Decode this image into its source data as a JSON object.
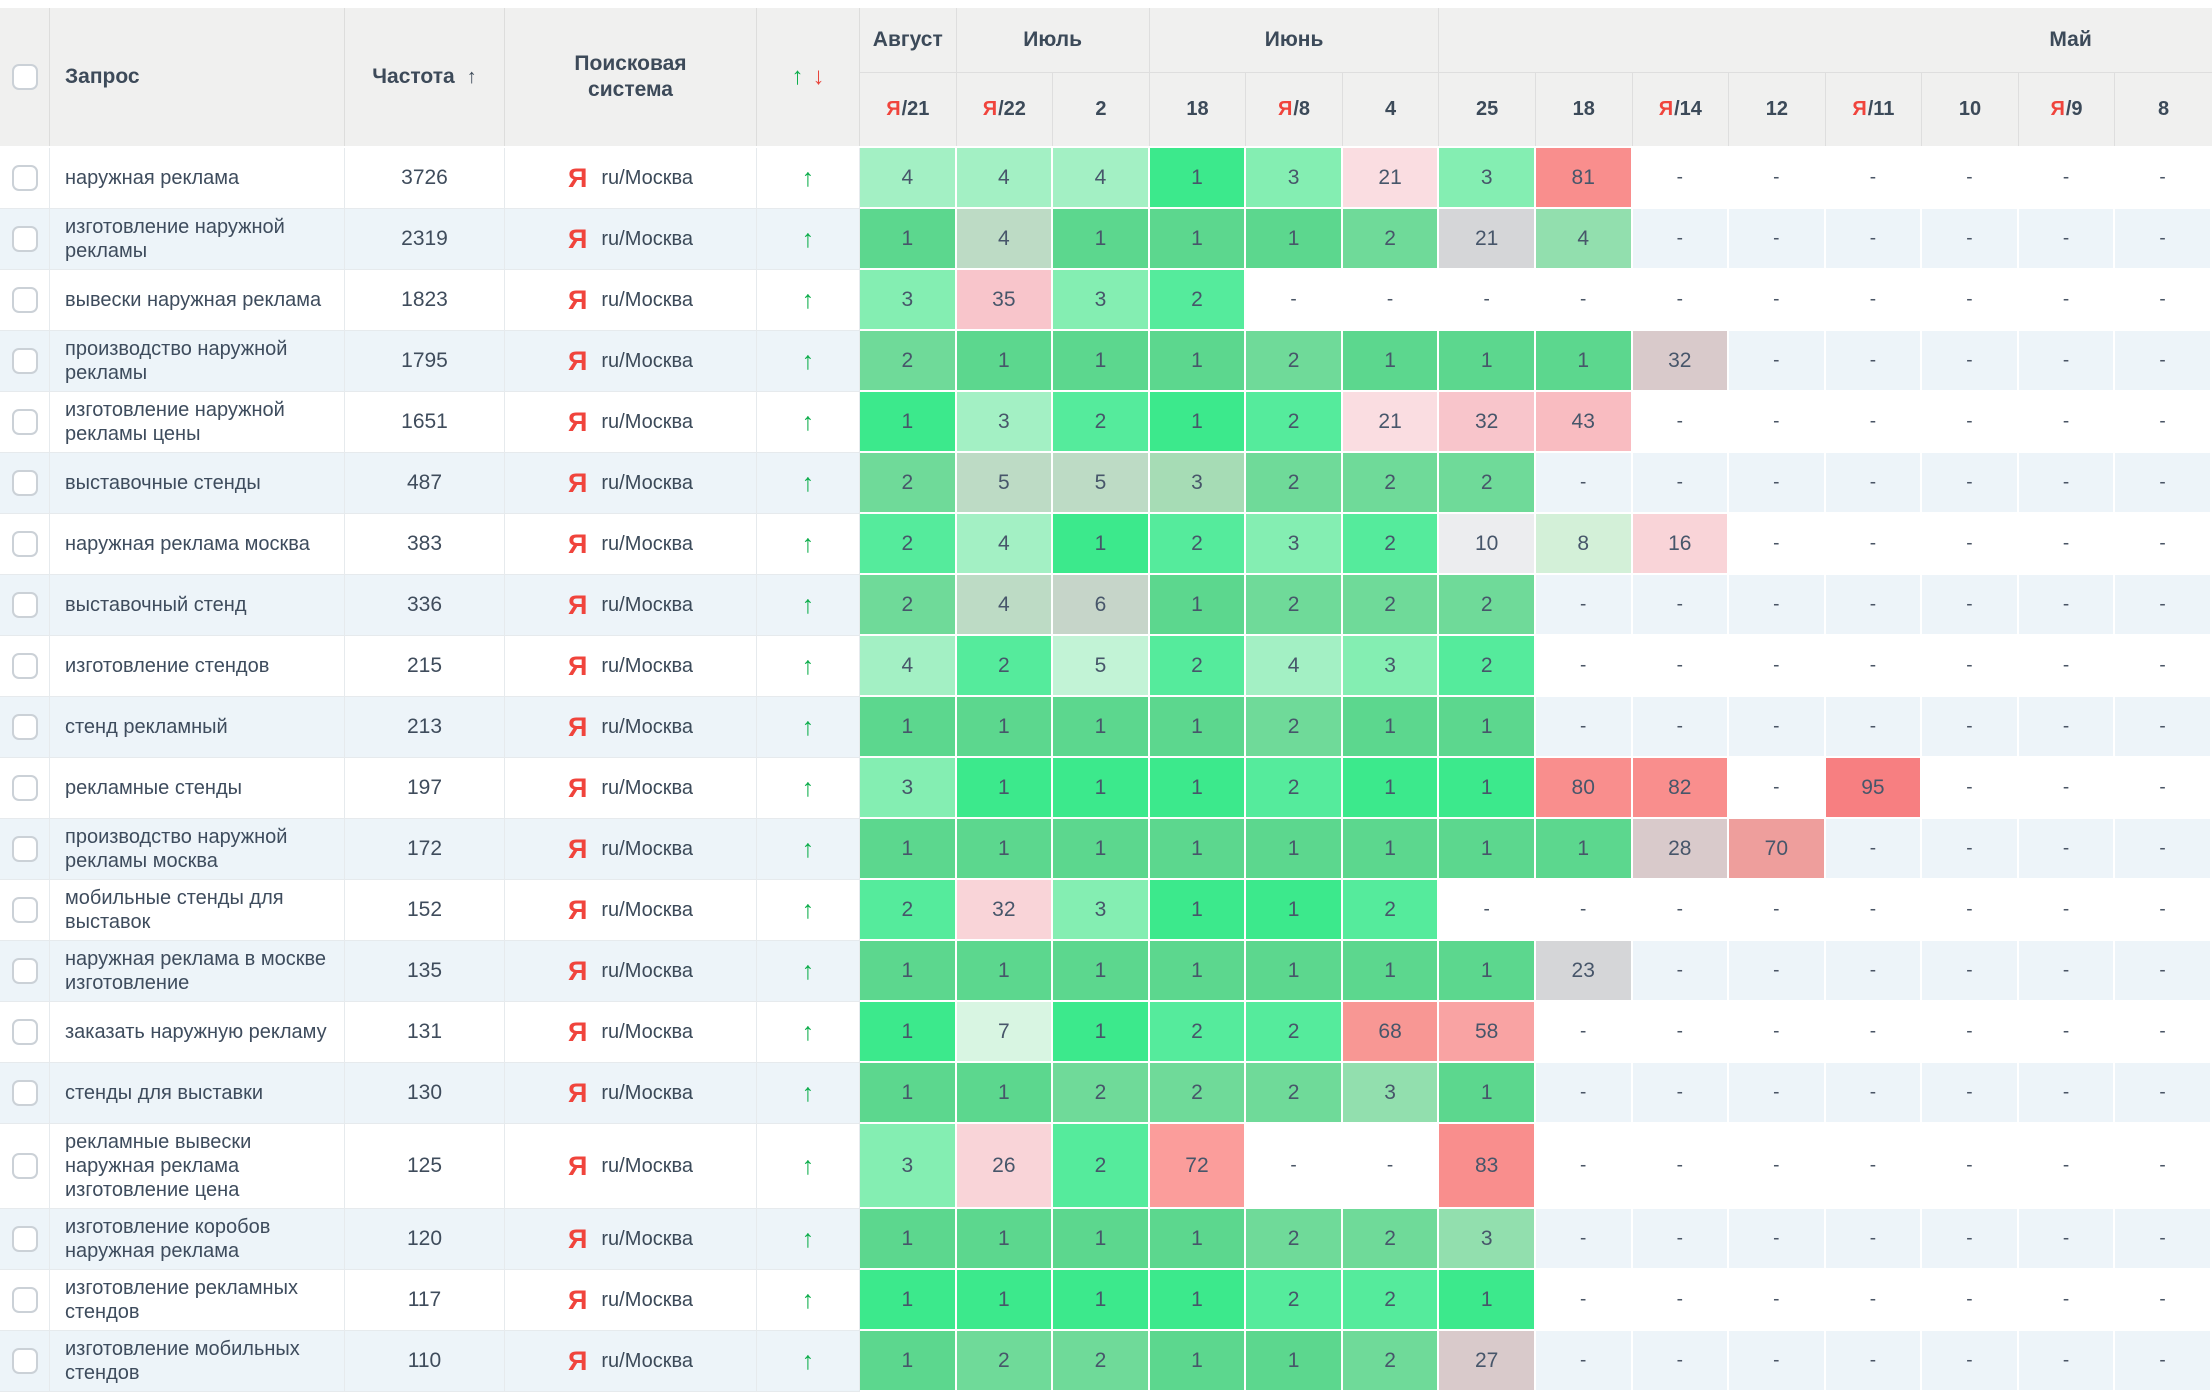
{
  "header": {
    "query": "Запрос",
    "frequency": "Частота",
    "frequency_sort_icon": "↑",
    "search_engine": "Поисковая система",
    "trend_up_icon": "↑",
    "trend_down_icon": "↓",
    "months": [
      {
        "label": "Август",
        "span": 1
      },
      {
        "label": "Июль",
        "span": 2
      },
      {
        "label": "Июнь",
        "span": 3
      },
      {
        "label": "Май",
        "span": 8
      }
    ],
    "dates": [
      {
        "yandex": true,
        "day": "21"
      },
      {
        "yandex": true,
        "day": "22"
      },
      {
        "yandex": false,
        "day": "2"
      },
      {
        "yandex": false,
        "day": "18"
      },
      {
        "yandex": true,
        "day": "8"
      },
      {
        "yandex": false,
        "day": "4"
      },
      {
        "yandex": false,
        "day": "25"
      },
      {
        "yandex": false,
        "day": "18"
      },
      {
        "yandex": true,
        "day": "14"
      },
      {
        "yandex": false,
        "day": "12"
      },
      {
        "yandex": true,
        "day": "11"
      },
      {
        "yandex": false,
        "day": "10"
      },
      {
        "yandex": true,
        "day": "9"
      },
      {
        "yandex": false,
        "day": "8"
      }
    ]
  },
  "engine": {
    "icon": "Я",
    "region": "ru/Москва"
  },
  "colors": {
    "header_bg": "#f0f0ef",
    "stripe_bg": "#edf4f9",
    "accent_green": "#0fae4d",
    "accent_red": "#e8453c",
    "yandex_red": "#f0443c",
    "text": "#3d4a59"
  },
  "palette": {
    "g1": "#3ce98c",
    "g2": "#55eb9c",
    "g3": "#84eeb2",
    "g4": "#a3f0c4",
    "g5": "#c2f3d6",
    "g7": "#d8f5e2",
    "g8": "#d3f0d8",
    "h1": "#5cd78e",
    "h2": "#6fda99",
    "h3": "#92dfae",
    "h4": "#a6dcb5",
    "h5": "#bddbc5",
    "h6": "#c6d5c9",
    "gy": "#d5d6d8",
    "gyl": "#ecedef",
    "mv": "#d9cacb",
    "p1": "#fadde1",
    "p2": "#f8c5cb",
    "p2b": "#f9bcc1",
    "p3": "#f9d4d8",
    "r1": "#f98e8d",
    "r2": "#f77f81",
    "r3": "#f89794",
    "r4": "#f9a3a3",
    "r5": "#fb9d9b",
    "r6": "#ee9e9c"
  },
  "rows": [
    {
      "query": "наружная реклама",
      "frequency": "3726",
      "trend": "up",
      "positions": [
        [
          "4",
          "g4"
        ],
        [
          "4",
          "g4"
        ],
        [
          "4",
          "g4"
        ],
        [
          "1",
          "g1"
        ],
        [
          "3",
          "g3"
        ],
        [
          "21",
          "p1"
        ],
        [
          "3",
          "g3"
        ],
        [
          "81",
          "r1"
        ],
        [
          "-",
          ""
        ],
        [
          "-",
          ""
        ],
        [
          "-",
          ""
        ],
        [
          "-",
          ""
        ],
        [
          "-",
          ""
        ],
        [
          "-",
          ""
        ]
      ]
    },
    {
      "query": "изготовление наружной рекламы",
      "frequency": "2319",
      "trend": "up",
      "positions": [
        [
          "1",
          "h1"
        ],
        [
          "4",
          "h5"
        ],
        [
          "1",
          "h1"
        ],
        [
          "1",
          "h1"
        ],
        [
          "1",
          "h1"
        ],
        [
          "2",
          "h2"
        ],
        [
          "21",
          "gy"
        ],
        [
          "4",
          "h3"
        ],
        [
          "-",
          ""
        ],
        [
          "-",
          ""
        ],
        [
          "-",
          ""
        ],
        [
          "-",
          ""
        ],
        [
          "-",
          ""
        ],
        [
          "-",
          ""
        ]
      ]
    },
    {
      "query": "вывески наружная реклама",
      "frequency": "1823",
      "trend": "up",
      "positions": [
        [
          "3",
          "g3"
        ],
        [
          "35",
          "p2"
        ],
        [
          "3",
          "g3"
        ],
        [
          "2",
          "g2"
        ],
        [
          "-",
          ""
        ],
        [
          "-",
          ""
        ],
        [
          "-",
          ""
        ],
        [
          "-",
          ""
        ],
        [
          "-",
          ""
        ],
        [
          "-",
          ""
        ],
        [
          "-",
          ""
        ],
        [
          "-",
          ""
        ],
        [
          "-",
          ""
        ],
        [
          "-",
          ""
        ]
      ]
    },
    {
      "query": "производство наружной рекламы",
      "frequency": "1795",
      "trend": "up",
      "positions": [
        [
          "2",
          "h2"
        ],
        [
          "1",
          "h1"
        ],
        [
          "1",
          "h1"
        ],
        [
          "1",
          "h1"
        ],
        [
          "2",
          "h2"
        ],
        [
          "1",
          "h1"
        ],
        [
          "1",
          "h1"
        ],
        [
          "1",
          "h1"
        ],
        [
          "32",
          "mv"
        ],
        [
          "-",
          ""
        ],
        [
          "-",
          ""
        ],
        [
          "-",
          ""
        ],
        [
          "-",
          ""
        ],
        [
          "-",
          ""
        ]
      ]
    },
    {
      "query": "изготовление наружной рекламы цены",
      "frequency": "1651",
      "trend": "up",
      "positions": [
        [
          "1",
          "g1"
        ],
        [
          "3",
          "g4"
        ],
        [
          "2",
          "g2"
        ],
        [
          "1",
          "g1"
        ],
        [
          "2",
          "g2"
        ],
        [
          "21",
          "p1"
        ],
        [
          "32",
          "p2"
        ],
        [
          "43",
          "p2b"
        ],
        [
          "-",
          ""
        ],
        [
          "-",
          ""
        ],
        [
          "-",
          ""
        ],
        [
          "-",
          ""
        ],
        [
          "-",
          ""
        ],
        [
          "-",
          ""
        ]
      ]
    },
    {
      "query": "выставочные стенды",
      "frequency": "487",
      "trend": "up",
      "positions": [
        [
          "2",
          "h2"
        ],
        [
          "5",
          "h5"
        ],
        [
          "5",
          "h5"
        ],
        [
          "3",
          "h4"
        ],
        [
          "2",
          "h2"
        ],
        [
          "2",
          "h2"
        ],
        [
          "2",
          "h2"
        ],
        [
          "-",
          ""
        ],
        [
          "-",
          ""
        ],
        [
          "-",
          ""
        ],
        [
          "-",
          ""
        ],
        [
          "-",
          ""
        ],
        [
          "-",
          ""
        ],
        [
          "-",
          ""
        ]
      ]
    },
    {
      "query": "наружная реклама москва",
      "frequency": "383",
      "trend": "up",
      "positions": [
        [
          "2",
          "g2"
        ],
        [
          "4",
          "g4"
        ],
        [
          "1",
          "g1"
        ],
        [
          "2",
          "g2"
        ],
        [
          "3",
          "g3"
        ],
        [
          "2",
          "g2"
        ],
        [
          "10",
          "gyl"
        ],
        [
          "8",
          "g8"
        ],
        [
          "16",
          "p3"
        ],
        [
          "-",
          ""
        ],
        [
          "-",
          ""
        ],
        [
          "-",
          ""
        ],
        [
          "-",
          ""
        ],
        [
          "-",
          ""
        ]
      ]
    },
    {
      "query": "выставочный стенд",
      "frequency": "336",
      "trend": "up",
      "positions": [
        [
          "2",
          "h2"
        ],
        [
          "4",
          "h5"
        ],
        [
          "6",
          "h6"
        ],
        [
          "1",
          "h1"
        ],
        [
          "2",
          "h2"
        ],
        [
          "2",
          "h2"
        ],
        [
          "2",
          "h2"
        ],
        [
          "-",
          ""
        ],
        [
          "-",
          ""
        ],
        [
          "-",
          ""
        ],
        [
          "-",
          ""
        ],
        [
          "-",
          ""
        ],
        [
          "-",
          ""
        ],
        [
          "-",
          ""
        ]
      ]
    },
    {
      "query": "изготовление стендов",
      "frequency": "215",
      "trend": "up",
      "positions": [
        [
          "4",
          "g4"
        ],
        [
          "2",
          "g2"
        ],
        [
          "5",
          "g5"
        ],
        [
          "2",
          "g2"
        ],
        [
          "4",
          "g4"
        ],
        [
          "3",
          "g3"
        ],
        [
          "2",
          "g2"
        ],
        [
          "-",
          ""
        ],
        [
          "-",
          ""
        ],
        [
          "-",
          ""
        ],
        [
          "-",
          ""
        ],
        [
          "-",
          ""
        ],
        [
          "-",
          ""
        ],
        [
          "-",
          ""
        ]
      ]
    },
    {
      "query": "стенд рекламный",
      "frequency": "213",
      "trend": "up",
      "positions": [
        [
          "1",
          "h1"
        ],
        [
          "1",
          "h1"
        ],
        [
          "1",
          "h1"
        ],
        [
          "1",
          "h1"
        ],
        [
          "2",
          "h2"
        ],
        [
          "1",
          "h1"
        ],
        [
          "1",
          "h1"
        ],
        [
          "-",
          ""
        ],
        [
          "-",
          ""
        ],
        [
          "-",
          ""
        ],
        [
          "-",
          ""
        ],
        [
          "-",
          ""
        ],
        [
          "-",
          ""
        ],
        [
          "-",
          ""
        ]
      ]
    },
    {
      "query": "рекламные стенды",
      "frequency": "197",
      "trend": "up",
      "positions": [
        [
          "3",
          "g3"
        ],
        [
          "1",
          "g1"
        ],
        [
          "1",
          "g1"
        ],
        [
          "1",
          "g1"
        ],
        [
          "2",
          "g2"
        ],
        [
          "1",
          "g1"
        ],
        [
          "1",
          "g1"
        ],
        [
          "80",
          "r1"
        ],
        [
          "82",
          "r1"
        ],
        [
          "-",
          ""
        ],
        [
          "95",
          "r2"
        ],
        [
          "-",
          ""
        ],
        [
          "-",
          ""
        ],
        [
          "-",
          ""
        ]
      ]
    },
    {
      "query": "производство наружной рекламы москва",
      "frequency": "172",
      "trend": "up",
      "positions": [
        [
          "1",
          "h1"
        ],
        [
          "1",
          "h1"
        ],
        [
          "1",
          "h1"
        ],
        [
          "1",
          "h1"
        ],
        [
          "1",
          "h1"
        ],
        [
          "1",
          "h1"
        ],
        [
          "1",
          "h1"
        ],
        [
          "1",
          "h1"
        ],
        [
          "28",
          "mv"
        ],
        [
          "70",
          "r6"
        ],
        [
          "-",
          ""
        ],
        [
          "-",
          ""
        ],
        [
          "-",
          ""
        ],
        [
          "-",
          ""
        ]
      ]
    },
    {
      "query": "мобильные стенды для выставок",
      "frequency": "152",
      "trend": "up",
      "positions": [
        [
          "2",
          "g2"
        ],
        [
          "32",
          "p3"
        ],
        [
          "3",
          "g3"
        ],
        [
          "1",
          "g1"
        ],
        [
          "1",
          "g1"
        ],
        [
          "2",
          "g2"
        ],
        [
          "-",
          ""
        ],
        [
          "-",
          ""
        ],
        [
          "-",
          ""
        ],
        [
          "-",
          ""
        ],
        [
          "-",
          ""
        ],
        [
          "-",
          ""
        ],
        [
          "-",
          ""
        ],
        [
          "-",
          ""
        ]
      ]
    },
    {
      "query": "наружная реклама в москве изготовление",
      "frequency": "135",
      "trend": "up",
      "positions": [
        [
          "1",
          "h1"
        ],
        [
          "1",
          "h1"
        ],
        [
          "1",
          "h1"
        ],
        [
          "1",
          "h1"
        ],
        [
          "1",
          "h1"
        ],
        [
          "1",
          "h1"
        ],
        [
          "1",
          "h1"
        ],
        [
          "23",
          "gy"
        ],
        [
          "-",
          ""
        ],
        [
          "-",
          ""
        ],
        [
          "-",
          ""
        ],
        [
          "-",
          ""
        ],
        [
          "-",
          ""
        ],
        [
          "-",
          ""
        ]
      ]
    },
    {
      "query": "заказать наружную рекламу",
      "frequency": "131",
      "trend": "up",
      "positions": [
        [
          "1",
          "g1"
        ],
        [
          "7",
          "g7"
        ],
        [
          "1",
          "g1"
        ],
        [
          "2",
          "g2"
        ],
        [
          "2",
          "g2"
        ],
        [
          "68",
          "r3"
        ],
        [
          "58",
          "r4"
        ],
        [
          "-",
          ""
        ],
        [
          "-",
          ""
        ],
        [
          "-",
          ""
        ],
        [
          "-",
          ""
        ],
        [
          "-",
          ""
        ],
        [
          "-",
          ""
        ],
        [
          "-",
          ""
        ]
      ]
    },
    {
      "query": "стенды для выставки",
      "frequency": "130",
      "trend": "up",
      "positions": [
        [
          "1",
          "h1"
        ],
        [
          "1",
          "h1"
        ],
        [
          "2",
          "h2"
        ],
        [
          "2",
          "h2"
        ],
        [
          "2",
          "h2"
        ],
        [
          "3",
          "h3"
        ],
        [
          "1",
          "h1"
        ],
        [
          "-",
          ""
        ],
        [
          "-",
          ""
        ],
        [
          "-",
          ""
        ],
        [
          "-",
          ""
        ],
        [
          "-",
          ""
        ],
        [
          "-",
          ""
        ],
        [
          "-",
          ""
        ]
      ]
    },
    {
      "query": "рекламные вывески наружная реклама изготовление цена",
      "frequency": "125",
      "trend": "up",
      "positions": [
        [
          "3",
          "g3"
        ],
        [
          "26",
          "p3"
        ],
        [
          "2",
          "g2"
        ],
        [
          "72",
          "r5"
        ],
        [
          "-",
          ""
        ],
        [
          "-",
          ""
        ],
        [
          "83",
          "r1"
        ],
        [
          "-",
          ""
        ],
        [
          "-",
          ""
        ],
        [
          "-",
          ""
        ],
        [
          "-",
          ""
        ],
        [
          "-",
          ""
        ],
        [
          "-",
          ""
        ],
        [
          "-",
          ""
        ]
      ]
    },
    {
      "query": "изготовление коробов наружная реклама",
      "frequency": "120",
      "trend": "up",
      "positions": [
        [
          "1",
          "h1"
        ],
        [
          "1",
          "h1"
        ],
        [
          "1",
          "h1"
        ],
        [
          "1",
          "h1"
        ],
        [
          "2",
          "h2"
        ],
        [
          "2",
          "h2"
        ],
        [
          "3",
          "h3"
        ],
        [
          "-",
          ""
        ],
        [
          "-",
          ""
        ],
        [
          "-",
          ""
        ],
        [
          "-",
          ""
        ],
        [
          "-",
          ""
        ],
        [
          "-",
          ""
        ],
        [
          "-",
          ""
        ]
      ]
    },
    {
      "query": "изготовление рекламных стендов",
      "frequency": "117",
      "trend": "up",
      "positions": [
        [
          "1",
          "g1"
        ],
        [
          "1",
          "g1"
        ],
        [
          "1",
          "g1"
        ],
        [
          "1",
          "g1"
        ],
        [
          "2",
          "g2"
        ],
        [
          "2",
          "g2"
        ],
        [
          "1",
          "g1"
        ],
        [
          "-",
          ""
        ],
        [
          "-",
          ""
        ],
        [
          "-",
          ""
        ],
        [
          "-",
          ""
        ],
        [
          "-",
          ""
        ],
        [
          "-",
          ""
        ],
        [
          "-",
          ""
        ]
      ]
    },
    {
      "query": "изготовление мобильных стендов",
      "frequency": "110",
      "trend": "up",
      "positions": [
        [
          "1",
          "h1"
        ],
        [
          "2",
          "h2"
        ],
        [
          "2",
          "h2"
        ],
        [
          "1",
          "h1"
        ],
        [
          "1",
          "h1"
        ],
        [
          "2",
          "h2"
        ],
        [
          "27",
          "mv"
        ],
        [
          "-",
          ""
        ],
        [
          "-",
          ""
        ],
        [
          "-",
          ""
        ],
        [
          "-",
          ""
        ],
        [
          "-",
          ""
        ],
        [
          "-",
          ""
        ],
        [
          "-",
          ""
        ]
      ]
    }
  ]
}
